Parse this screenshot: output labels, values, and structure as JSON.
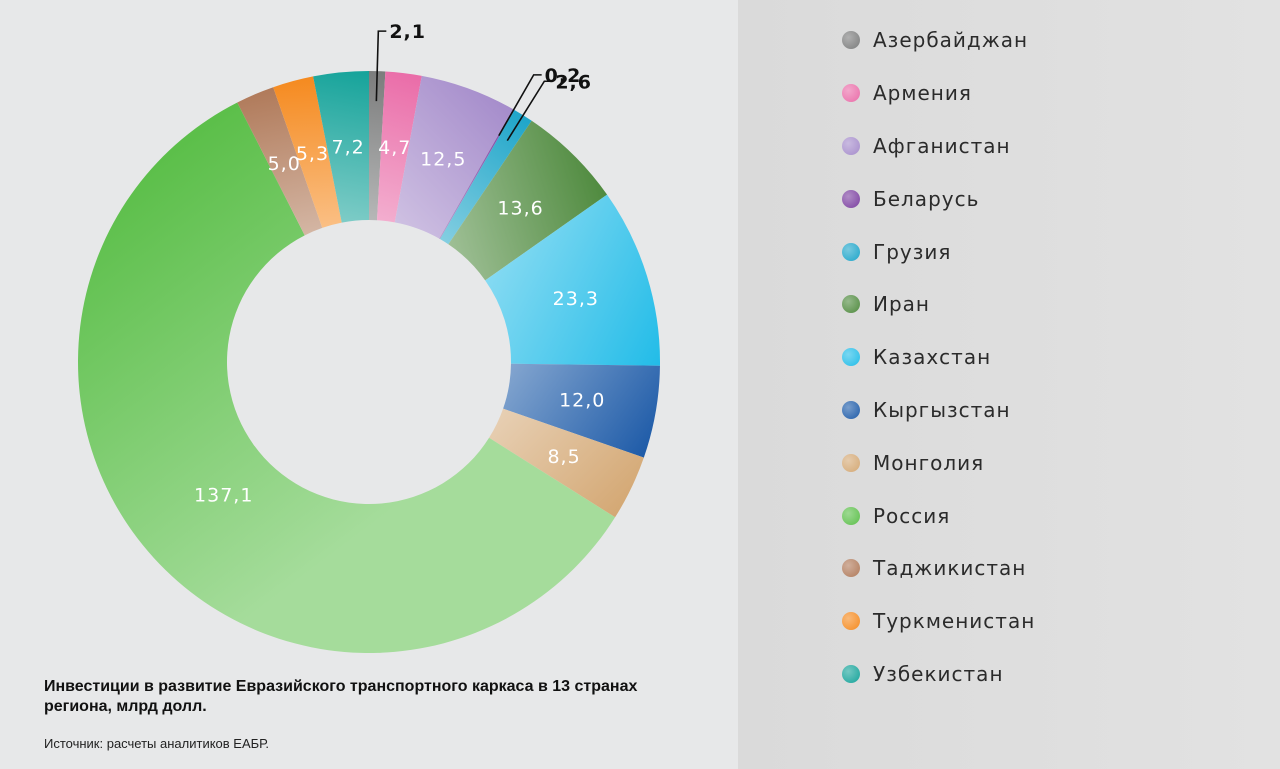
{
  "chart_data": {
    "type": "pie",
    "donut": true,
    "categories": [
      "Азербайджан",
      "Армения",
      "Афганистан",
      "Беларусь",
      "Грузия",
      "Иран",
      "Казахстан",
      "Кыргызстан",
      "Монголия",
      "Россия",
      "Таджикистан",
      "Туркменистан",
      "Узбекистан"
    ],
    "values": [
      2.1,
      4.7,
      12.5,
      0.2,
      2.6,
      13.6,
      23.3,
      12.0,
      8.5,
      137.1,
      5.0,
      5.3,
      7.2
    ],
    "value_labels": [
      "2,1",
      "4,7",
      "12,5",
      "0,2",
      "2,6",
      "13,6",
      "23,3",
      "12,0",
      "8,5",
      "137,1",
      "5,0",
      "5,3",
      "7,2"
    ],
    "colors": [
      "#7b7c7c",
      "#ea6ca8",
      "#a58ccb",
      "#7b3fa0",
      "#1ea5c9",
      "#4f8a3e",
      "#22bce8",
      "#1e5ba8",
      "#d4a874",
      "#5cbf4a",
      "#b07a5a",
      "#f58a1f",
      "#15a39a"
    ],
    "legend_position": "right"
  },
  "caption": {
    "title": "Инвестиции в развитие Евразийского транспортного каркаса в 13 странах региона, млрд долл.",
    "source": "Источник: расчеты аналитиков ЕАБР."
  }
}
